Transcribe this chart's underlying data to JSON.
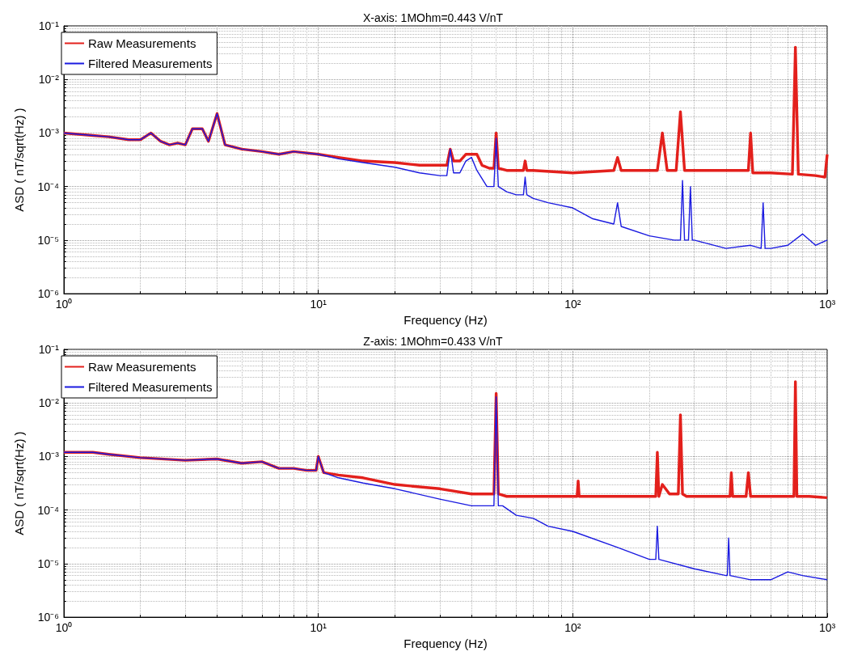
{
  "chart_data": [
    {
      "type": "line",
      "title": "X-axis: 1MOhm=0.443 V/nT",
      "xlabel": "Frequency (Hz)",
      "ylabel": "ASD ( nT/sqrt(Hz) )",
      "log": "xy",
      "grid": true,
      "legend": "top left",
      "xlim": [
        1,
        1000
      ],
      "ylim": [
        1e-06,
        0.1
      ],
      "xticks": [
        {
          "value": 1,
          "label": "10⁰"
        },
        {
          "value": 10,
          "label": "10¹"
        },
        {
          "value": 100,
          "label": "10²"
        },
        {
          "value": 1000,
          "label": "10³"
        }
      ],
      "yticks": [
        {
          "value": 1e-06,
          "label": "10⁻⁶"
        },
        {
          "value": 1e-05,
          "label": "10⁻⁵"
        },
        {
          "value": 0.0001,
          "label": "10⁻⁴"
        },
        {
          "value": 0.001,
          "label": "10⁻³"
        },
        {
          "value": 0.01,
          "label": "10⁻²"
        },
        {
          "value": 0.1,
          "label": "10⁻¹"
        }
      ],
      "series": [
        {
          "name": "Raw Measurements",
          "color": "#e3201c",
          "x": [
            1,
            1.3,
            1.5,
            1.8,
            2,
            2.2,
            2.4,
            2.6,
            2.8,
            3,
            3.2,
            3.5,
            3.7,
            4,
            4.3,
            5,
            6,
            7,
            8,
            10,
            12,
            15,
            20,
            25,
            30,
            32,
            33,
            34,
            36,
            38,
            42,
            44,
            47,
            49,
            50,
            51,
            55,
            60,
            64,
            65,
            66,
            70,
            100,
            145,
            150,
            155,
            200,
            215,
            225,
            235,
            255,
            265,
            275,
            400,
            490,
            500,
            510,
            600,
            730,
            750,
            770,
            900,
            980,
            1000
          ],
          "values": [
            0.001,
            0.0009,
            0.00085,
            0.00075,
            0.00075,
            0.001,
            0.0007,
            0.0006,
            0.00065,
            0.0006,
            0.0012,
            0.0012,
            0.0007,
            0.0023,
            0.0006,
            0.0005,
            0.00045,
            0.0004,
            0.00045,
            0.0004,
            0.00035,
            0.0003,
            0.00028,
            0.00025,
            0.00025,
            0.00025,
            0.0005,
            0.0003,
            0.0003,
            0.0004,
            0.0004,
            0.00025,
            0.00022,
            0.00022,
            0.001,
            0.00022,
            0.0002,
            0.0002,
            0.0002,
            0.0003,
            0.0002,
            0.0002,
            0.00018,
            0.0002,
            0.00035,
            0.0002,
            0.0002,
            0.0002,
            0.001,
            0.0002,
            0.0002,
            0.0025,
            0.0002,
            0.0002,
            0.0002,
            0.001,
            0.00018,
            0.00018,
            0.00017,
            0.04,
            0.00017,
            0.00016,
            0.00015,
            0.0004
          ]
        },
        {
          "name": "Filtered Measurements",
          "color": "#1a1ae0",
          "x": [
            1,
            1.3,
            1.5,
            1.8,
            2,
            2.2,
            2.4,
            2.6,
            2.8,
            3,
            3.2,
            3.5,
            3.7,
            4,
            4.3,
            5,
            6,
            7,
            8,
            10,
            12,
            15,
            20,
            25,
            30,
            32,
            33,
            34,
            36,
            38,
            40,
            42,
            46,
            49,
            50,
            51,
            55,
            60,
            64,
            65,
            66,
            70,
            80,
            100,
            120,
            145,
            150,
            155,
            200,
            250,
            265,
            270,
            275,
            285,
            290,
            295,
            300,
            400,
            500,
            550,
            560,
            570,
            600,
            700,
            800,
            900,
            1000
          ],
          "values": [
            0.001,
            0.0009,
            0.00085,
            0.00075,
            0.00075,
            0.001,
            0.0007,
            0.0006,
            0.00065,
            0.0006,
            0.0012,
            0.0012,
            0.0007,
            0.0023,
            0.0006,
            0.0005,
            0.00045,
            0.0004,
            0.00045,
            0.0004,
            0.00033,
            0.00028,
            0.00023,
            0.00018,
            0.00016,
            0.00016,
            0.0005,
            0.00018,
            0.00018,
            0.0003,
            0.00035,
            0.0002,
            0.0001,
            0.0001,
            0.0008,
            0.0001,
            8e-05,
            7e-05,
            7e-05,
            0.00015,
            7e-05,
            6e-05,
            5e-05,
            4e-05,
            2.5e-05,
            2e-05,
            5e-05,
            1.8e-05,
            1.2e-05,
            1e-05,
            1e-05,
            0.00013,
            1e-05,
            1e-05,
            0.0001,
            1e-05,
            1e-05,
            7e-06,
            8e-06,
            7e-06,
            5e-05,
            7e-06,
            7e-06,
            8e-06,
            1.3e-05,
            8e-06,
            1e-05
          ]
        }
      ]
    },
    {
      "type": "line",
      "title": "Z-axis: 1MOhm=0.433 V/nT",
      "xlabel": "Frequency (Hz)",
      "ylabel": "ASD ( nT/sqrt(Hz) )",
      "log": "xy",
      "grid": true,
      "legend": "top left",
      "xlim": [
        1,
        1000
      ],
      "ylim": [
        1e-06,
        0.1
      ],
      "xticks": [
        {
          "value": 1,
          "label": "10⁰"
        },
        {
          "value": 10,
          "label": "10¹"
        },
        {
          "value": 100,
          "label": "10²"
        },
        {
          "value": 1000,
          "label": "10³"
        }
      ],
      "yticks": [
        {
          "value": 1e-06,
          "label": "10⁻⁶"
        },
        {
          "value": 1e-05,
          "label": "10⁻⁵"
        },
        {
          "value": 0.0001,
          "label": "10⁻⁴"
        },
        {
          "value": 0.001,
          "label": "10⁻³"
        },
        {
          "value": 0.01,
          "label": "10⁻²"
        },
        {
          "value": 0.1,
          "label": "10⁻¹"
        }
      ],
      "series": [
        {
          "name": "Raw Measurements",
          "color": "#e3201c",
          "x": [
            1,
            1.3,
            1.5,
            2,
            3,
            4,
            5,
            6,
            7,
            8,
            9,
            9.8,
            10,
            10.5,
            12,
            15,
            20,
            30,
            40,
            45,
            49,
            50,
            51,
            55,
            60,
            100,
            104,
            105,
            106,
            200,
            212,
            215,
            218,
            225,
            240,
            260,
            265,
            270,
            280,
            400,
            415,
            420,
            425,
            480,
            490,
            500,
            600,
            740,
            750,
            760,
            850,
            1000
          ],
          "values": [
            0.0012,
            0.0012,
            0.0011,
            0.00095,
            0.00085,
            0.0009,
            0.00075,
            0.0008,
            0.0006,
            0.0006,
            0.00055,
            0.00055,
            0.001,
            0.0005,
            0.00045,
            0.0004,
            0.0003,
            0.00025,
            0.0002,
            0.0002,
            0.0002,
            0.015,
            0.0002,
            0.00018,
            0.00018,
            0.00018,
            0.00018,
            0.00035,
            0.00018,
            0.00018,
            0.00018,
            0.0012,
            0.00018,
            0.0003,
            0.0002,
            0.0002,
            0.006,
            0.0002,
            0.00018,
            0.00018,
            0.00018,
            0.0005,
            0.00018,
            0.00018,
            0.0005,
            0.00018,
            0.00018,
            0.00018,
            0.025,
            0.00018,
            0.00018,
            0.00017
          ]
        },
        {
          "name": "Filtered Measurements",
          "color": "#1a1ae0",
          "x": [
            1,
            1.3,
            1.5,
            2,
            3,
            4,
            5,
            6,
            7,
            8,
            9,
            9.8,
            10,
            10.5,
            12,
            15,
            20,
            30,
            40,
            45,
            49,
            50,
            51,
            53,
            60,
            70,
            80,
            100,
            150,
            200,
            212,
            215,
            218,
            300,
            400,
            405,
            410,
            415,
            500,
            600,
            700,
            800,
            1000
          ],
          "values": [
            0.0012,
            0.0012,
            0.0011,
            0.00095,
            0.00085,
            0.0009,
            0.00075,
            0.0008,
            0.0006,
            0.0006,
            0.00055,
            0.00055,
            0.001,
            0.0005,
            0.0004,
            0.00032,
            0.00025,
            0.00016,
            0.00012,
            0.00012,
            0.00012,
            0.013,
            0.00012,
            0.00012,
            8e-05,
            7e-05,
            5e-05,
            4e-05,
            2e-05,
            1.2e-05,
            1.2e-05,
            5e-05,
            1.2e-05,
            8e-06,
            6e-06,
            6e-06,
            3e-05,
            6e-06,
            5e-06,
            5e-06,
            7e-06,
            6e-06,
            5e-06
          ]
        }
      ]
    }
  ]
}
